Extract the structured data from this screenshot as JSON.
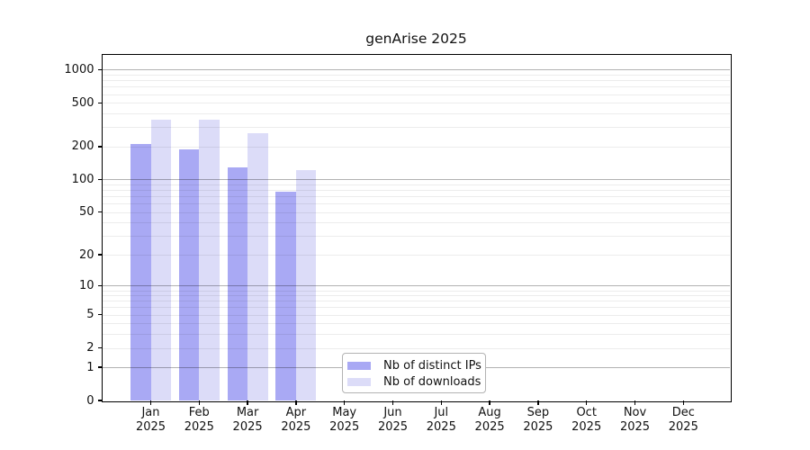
{
  "figure": {
    "title": "genArise 2025"
  },
  "chart_data": {
    "type": "bar",
    "title": "genArise 2025",
    "categories": [
      "Jan 2025",
      "Feb 2025",
      "Mar 2025",
      "Apr 2025",
      "May 2025",
      "Jun 2025",
      "Jul 2025",
      "Aug 2025",
      "Sep 2025",
      "Oct 2025",
      "Nov 2025",
      "Dec 2025"
    ],
    "series": [
      {
        "name": "Nb of distinct IPs",
        "color": "#a9a9f4",
        "values": [
          210,
          190,
          130,
          77,
          0,
          0,
          0,
          0,
          0,
          0,
          0,
          0
        ]
      },
      {
        "name": "Nb of downloads",
        "color": "#dcdcf8",
        "values": [
          350,
          350,
          265,
          122,
          0,
          0,
          0,
          0,
          0,
          0,
          0,
          0
        ]
      }
    ],
    "xlabel": "",
    "ylabel": "",
    "yscale": "log1p",
    "y_ticks": [
      0,
      1,
      2,
      5,
      10,
      20,
      50,
      100,
      200,
      500,
      1000
    ],
    "y_major_gridlines": [
      1,
      10,
      100,
      1000
    ],
    "ylim": [
      0,
      1400
    ],
    "grid": "horizontal",
    "legend_position": "lower-center"
  }
}
